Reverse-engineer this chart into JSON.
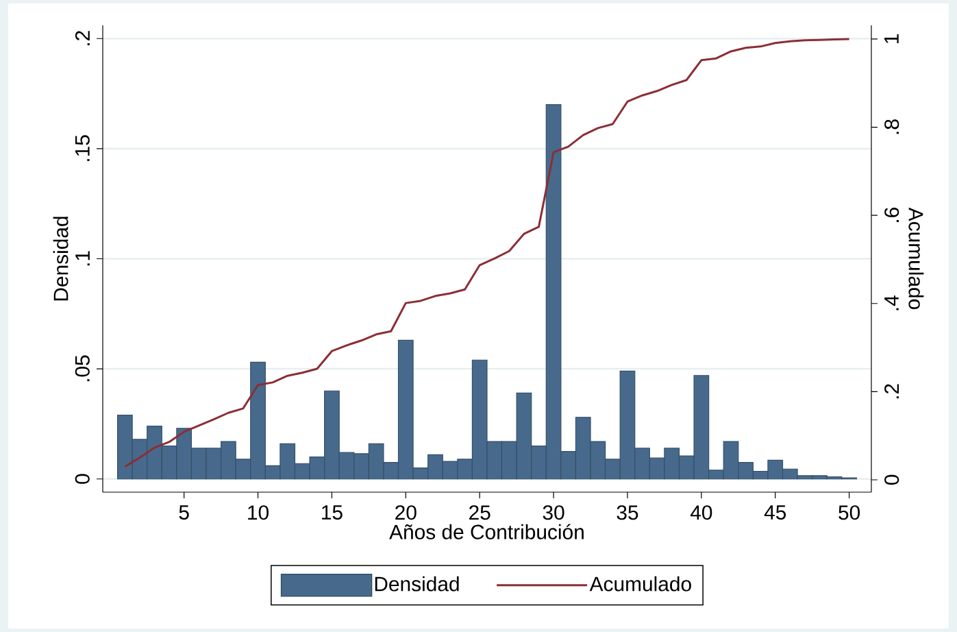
{
  "chart_data": {
    "type": "histogram",
    "xlabel": "Años de Contribución",
    "ylabel": "Densidad",
    "y2label": "Acumulado",
    "bins": [
      0.5,
      1.5,
      2.5,
      3.5,
      4.5,
      5.5,
      6.5,
      7.5,
      8.5,
      9.5,
      10.5,
      11.5,
      12.5,
      13.5,
      14.5,
      15.5,
      16.5,
      17.5,
      18.5,
      19.5,
      20.5,
      21.5,
      22.5,
      23.5,
      24.5,
      25.5,
      26.5,
      27.5,
      28.5,
      29.5,
      30.5,
      31.5,
      32.5,
      33.5,
      34.5,
      35.5,
      36.5,
      37.5,
      38.5,
      39.5,
      40.5,
      41.5,
      42.5,
      43.5,
      44.5,
      45.5,
      46.5,
      47.5,
      48.5,
      49.5,
      50.5
    ],
    "series": [
      {
        "name": "Densidad",
        "color": "#476a8c",
        "values": [
          0.029,
          0.018,
          0.024,
          0.015,
          0.023,
          0.014,
          0.014,
          0.017,
          0.009,
          0.053,
          0.006,
          0.016,
          0.007,
          0.01,
          0.04,
          0.012,
          0.0115,
          0.016,
          0.0075,
          0.063,
          0.005,
          0.011,
          0.008,
          0.009,
          0.054,
          0.017,
          0.017,
          0.039,
          0.015,
          0.17,
          0.0125,
          0.028,
          0.017,
          0.009,
          0.049,
          0.014,
          0.0095,
          0.014,
          0.0105,
          0.047,
          0.004,
          0.017,
          0.0075,
          0.0035,
          0.0085,
          0.0045,
          0.0015,
          0.0015,
          0.001,
          0.0005
        ]
      },
      {
        "name": "Acumulado",
        "type": "line",
        "axis": "y2",
        "color": "#8b2e35",
        "x": [
          1,
          2,
          3,
          4,
          5,
          6,
          7,
          8,
          9,
          10,
          11,
          12,
          13,
          14,
          15,
          16,
          17,
          18,
          19,
          20,
          21,
          22,
          23,
          24,
          25,
          26,
          27,
          28,
          29,
          30,
          31,
          32,
          33,
          34,
          35,
          36,
          37,
          38,
          39,
          40,
          41,
          42,
          43,
          44,
          45,
          46,
          47,
          48,
          49,
          50
        ],
        "values": [
          0.03,
          0.05,
          0.073,
          0.086,
          0.109,
          0.123,
          0.137,
          0.152,
          0.162,
          0.215,
          0.221,
          0.236,
          0.243,
          0.252,
          0.292,
          0.305,
          0.316,
          0.33,
          0.337,
          0.401,
          0.406,
          0.417,
          0.423,
          0.432,
          0.487,
          0.502,
          0.519,
          0.558,
          0.574,
          0.743,
          0.756,
          0.782,
          0.798,
          0.807,
          0.858,
          0.872,
          0.882,
          0.896,
          0.907,
          0.952,
          0.956,
          0.972,
          0.98,
          0.983,
          0.991,
          0.995,
          0.997,
          0.998,
          0.999,
          1.0
        ]
      }
    ],
    "xlim": [
      -0.5,
      51.5
    ],
    "xticks": [
      5,
      10,
      15,
      20,
      25,
      30,
      35,
      40,
      45,
      50
    ],
    "ylim": [
      -0.006,
      0.206
    ],
    "yticks": [
      0,
      {
        "value": 0.05,
        "label": ".05"
      },
      {
        "value": 0.1,
        "label": ".1"
      },
      {
        "value": 0.15,
        "label": ".15"
      },
      {
        "value": 0.2,
        "label": ".2"
      }
    ],
    "y2lim": [
      -0.028,
      1.031
    ],
    "y2ticks": [
      0,
      {
        "value": 0.2,
        "label": ".2"
      },
      {
        "value": 0.4,
        "label": ".4"
      },
      {
        "value": 0.6,
        "label": ".6"
      },
      {
        "value": 0.8,
        "label": ".8"
      },
      1
    ],
    "grid": "y",
    "legend": "bottom"
  }
}
